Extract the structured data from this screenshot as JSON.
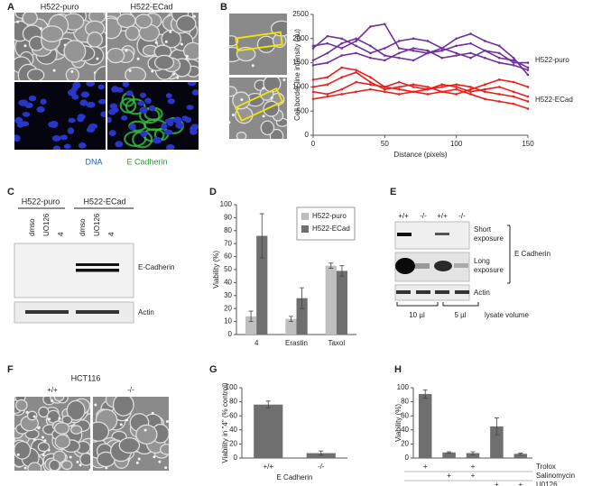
{
  "panel_labels": [
    "A",
    "B",
    "C",
    "D",
    "E",
    "F",
    "G",
    "H"
  ],
  "panel_a": {
    "columns": [
      "H522-puro",
      "H522-ECad"
    ],
    "stains": [
      "DNA",
      "E Cadherin"
    ]
  },
  "panel_c": {
    "groups": [
      "H522-puro",
      "H522-ECad"
    ],
    "lanes": [
      "dmso",
      "UO126",
      "4",
      "dmso",
      "UO126",
      "4"
    ],
    "bands": [
      "E-Cadherin",
      "Actin"
    ]
  },
  "panel_e": {
    "genotypes": [
      "+/+",
      "-/-",
      "+/+",
      "-/-"
    ],
    "rows": [
      [
        "Short",
        "exposure"
      ],
      [
        "Long",
        "exposure"
      ],
      [
        "Actin"
      ]
    ],
    "target": "E Cadherin",
    "volumes": [
      "10 µl",
      "5 µl"
    ],
    "volume_label": "lysate volume"
  },
  "panel_f": {
    "title": "HCT116",
    "columns": [
      "+/+",
      "-/-"
    ]
  },
  "chart_data": [
    {
      "type": "line",
      "y_label": "Cell border line intensity (au)",
      "x_label": "Distance (pixels)",
      "x": [
        0,
        10,
        20,
        30,
        40,
        50,
        60,
        70,
        80,
        90,
        100,
        110,
        120,
        130,
        140,
        150
      ],
      "series": [
        {
          "name": "H522-puro",
          "color": "#7030a0",
          "values": [
            1850,
            1900,
            1800,
            1950,
            2250,
            2300,
            1800,
            1750,
            1700,
            1750,
            1850,
            1900,
            1750,
            1600,
            1550,
            1400
          ]
        },
        {
          "color": "#7030a0",
          "values": [
            1800,
            2050,
            2000,
            1850,
            1700,
            1800,
            1950,
            2000,
            1950,
            1800,
            2000,
            2100,
            1950,
            1850,
            1600,
            1250
          ]
        },
        {
          "color": "#7030a0",
          "values": [
            1550,
            1700,
            1900,
            2000,
            1850,
            1650,
            1600,
            1550,
            1700,
            1800,
            1700,
            1600,
            1750,
            1700,
            1500,
            1500
          ]
        },
        {
          "color": "#7030a0",
          "values": [
            1450,
            1500,
            1650,
            1700,
            1600,
            1550,
            1700,
            1800,
            1750,
            1600,
            1650,
            1700,
            1600,
            1500,
            1450,
            1350
          ]
        },
        {
          "name": "H522-ECad",
          "color": "#e8201c",
          "values": [
            1150,
            1200,
            1400,
            1350,
            1200,
            1000,
            950,
            900,
            950,
            1050,
            1000,
            900,
            950,
            1000,
            900,
            800
          ]
        },
        {
          "color": "#e8201c",
          "values": [
            1000,
            1050,
            1200,
            1300,
            1100,
            950,
            1000,
            1050,
            1000,
            900,
            850,
            950,
            1050,
            1150,
            1100,
            1000
          ]
        },
        {
          "color": "#e8201c",
          "values": [
            900,
            850,
            950,
            1100,
            1050,
            1000,
            1100,
            1000,
            950,
            1000,
            1050,
            1000,
            900,
            850,
            800,
            700
          ]
        },
        {
          "color": "#e8201c",
          "values": [
            750,
            800,
            850,
            900,
            950,
            900,
            850,
            900,
            850,
            900,
            950,
            850,
            750,
            700,
            650,
            550
          ]
        }
      ],
      "xlim": [
        0,
        150
      ],
      "xticks": [
        0,
        50,
        100,
        150
      ],
      "ylim": [
        0,
        2500
      ],
      "yticks": [
        0,
        500,
        1000,
        1500,
        2000,
        2500
      ]
    },
    {
      "type": "bar",
      "y_label": "Viability (%)",
      "categories": [
        "4",
        "Erastin",
        "Taxol"
      ],
      "series": [
        {
          "name": "H522-puro",
          "color": "#bfbfbf",
          "values": [
            14,
            12,
            53
          ],
          "errors": [
            4,
            2,
            2
          ]
        },
        {
          "name": "H522-ECad",
          "color": "#6f6f6f",
          "values": [
            76,
            28,
            49
          ],
          "errors": [
            17,
            8,
            4
          ]
        }
      ],
      "ylim": [
        0,
        100
      ],
      "yticks": [
        0,
        10,
        20,
        30,
        40,
        50,
        60,
        70,
        80,
        90,
        100
      ],
      "legend": "upper right"
    },
    {
      "type": "bar",
      "y_label": "Viability in \"4\" (% control)",
      "x_label": "E Cadherin",
      "categories": [
        "+/+",
        "-/-"
      ],
      "values": [
        76,
        7
      ],
      "errors": [
        5,
        3
      ],
      "color": "#6f6f6f",
      "ylim": [
        0,
        100
      ],
      "yticks": [
        0,
        20,
        40,
        60,
        80,
        100
      ]
    },
    {
      "type": "bar",
      "y_label": "Viability (%)",
      "categories": [
        null,
        null,
        null,
        null,
        null
      ],
      "values": [
        91,
        8,
        7,
        45,
        6
      ],
      "errors": [
        6,
        1,
        2,
        12,
        1
      ],
      "color": "#6f6f6f",
      "ylim": [
        0,
        100
      ],
      "yticks": [
        0,
        20,
        40,
        60,
        80,
        100
      ],
      "treatments": [
        {
          "name": "Trolox",
          "applied": [
            "+",
            null,
            "+",
            null,
            null
          ]
        },
        {
          "name": "Salinomycin",
          "applied": [
            null,
            "+",
            "+",
            null,
            null
          ]
        },
        {
          "name": "U0126",
          "applied": [
            null,
            null,
            null,
            "+",
            "+"
          ]
        }
      ]
    }
  ]
}
